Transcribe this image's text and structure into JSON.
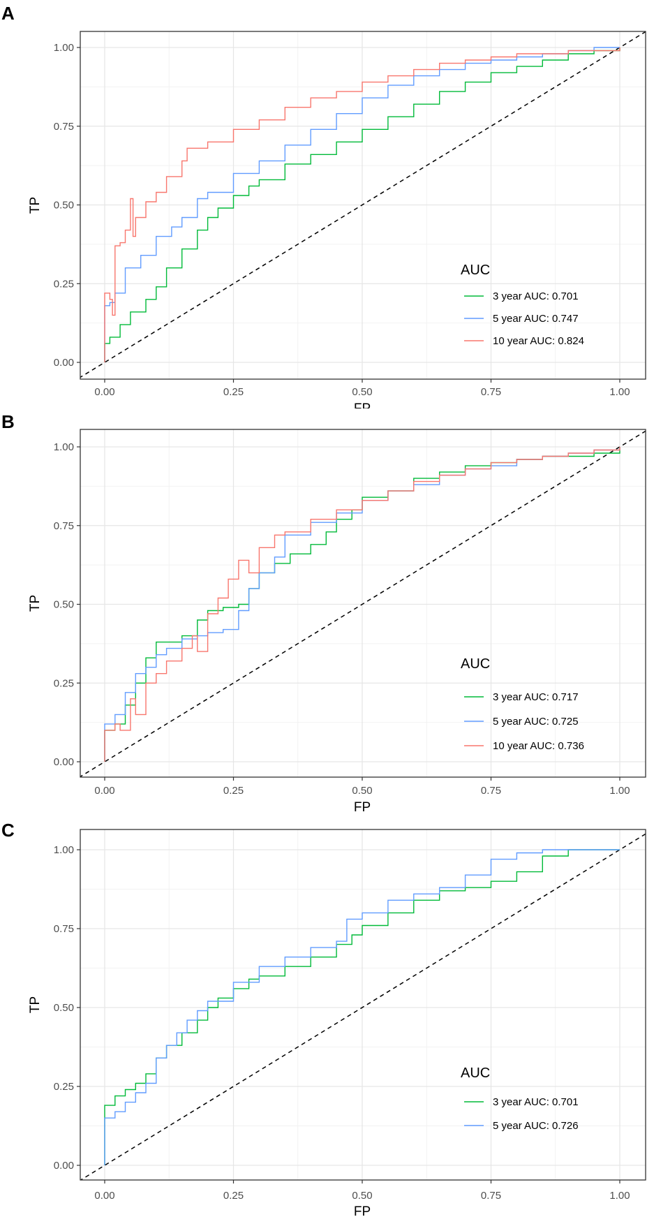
{
  "chart_data": [
    {
      "panel": "A",
      "type": "line",
      "xlabel": "FP",
      "ylabel": "TP",
      "xlim": [
        0,
        1
      ],
      "ylim": [
        0,
        1
      ],
      "x_ticks": [
        "0.00",
        "0.25",
        "0.50",
        "0.75",
        "1.00"
      ],
      "y_ticks": [
        "0.00",
        "0.25",
        "0.50",
        "0.75",
        "1.00"
      ],
      "grid": true,
      "diagonal": true,
      "legend": {
        "title": "AUC",
        "position": "bottom-right"
      },
      "series": [
        {
          "name": "3 year AUC: 0.701",
          "color": "#00ba38",
          "x": [
            0,
            0,
            0.01,
            0.03,
            0.05,
            0.08,
            0.1,
            0.12,
            0.15,
            0.18,
            0.2,
            0.22,
            0.25,
            0.28,
            0.3,
            0.35,
            0.4,
            0.45,
            0.5,
            0.55,
            0.6,
            0.65,
            0.7,
            0.75,
            0.8,
            0.85,
            0.9,
            0.95,
            1
          ],
          "y": [
            0,
            0.06,
            0.08,
            0.12,
            0.16,
            0.2,
            0.24,
            0.3,
            0.36,
            0.42,
            0.46,
            0.49,
            0.53,
            0.56,
            0.58,
            0.63,
            0.66,
            0.7,
            0.74,
            0.78,
            0.82,
            0.86,
            0.89,
            0.92,
            0.94,
            0.96,
            0.98,
            0.99,
            1
          ]
        },
        {
          "name": "5 year AUC: 0.747",
          "color": "#619cff",
          "x": [
            0,
            0,
            0.01,
            0.02,
            0.04,
            0.07,
            0.1,
            0.13,
            0.15,
            0.18,
            0.2,
            0.25,
            0.3,
            0.35,
            0.4,
            0.45,
            0.5,
            0.55,
            0.6,
            0.65,
            0.7,
            0.75,
            0.8,
            0.85,
            0.9,
            0.95,
            1
          ],
          "y": [
            0,
            0.18,
            0.19,
            0.22,
            0.3,
            0.34,
            0.4,
            0.43,
            0.46,
            0.52,
            0.54,
            0.6,
            0.64,
            0.69,
            0.74,
            0.79,
            0.84,
            0.88,
            0.91,
            0.93,
            0.95,
            0.96,
            0.97,
            0.98,
            0.99,
            1,
            1
          ]
        },
        {
          "name": "10 year AUC: 0.824",
          "color": "#f8766d",
          "x": [
            0,
            0,
            0.01,
            0.015,
            0.02,
            0.025,
            0.03,
            0.04,
            0.05,
            0.055,
            0.06,
            0.08,
            0.1,
            0.12,
            0.15,
            0.16,
            0.2,
            0.25,
            0.3,
            0.35,
            0.4,
            0.45,
            0.5,
            0.55,
            0.6,
            0.65,
            0.7,
            0.75,
            0.8,
            0.9,
            1
          ],
          "y": [
            0,
            0.22,
            0.2,
            0.15,
            0.37,
            0.37,
            0.38,
            0.42,
            0.52,
            0.4,
            0.46,
            0.51,
            0.54,
            0.59,
            0.64,
            0.68,
            0.7,
            0.74,
            0.77,
            0.81,
            0.84,
            0.86,
            0.89,
            0.91,
            0.93,
            0.95,
            0.96,
            0.97,
            0.98,
            0.99,
            1
          ]
        }
      ]
    },
    {
      "panel": "B",
      "type": "line",
      "xlabel": "FP",
      "ylabel": "TP",
      "xlim": [
        0,
        1
      ],
      "ylim": [
        0,
        1
      ],
      "x_ticks": [
        "0.00",
        "0.25",
        "0.50",
        "0.75",
        "1.00"
      ],
      "y_ticks": [
        "0.00",
        "0.25",
        "0.50",
        "0.75",
        "1.00"
      ],
      "grid": true,
      "diagonal": true,
      "legend": {
        "title": "AUC",
        "position": "bottom-right"
      },
      "series": [
        {
          "name": "3 year AUC: 0.717",
          "color": "#00ba38",
          "x": [
            0,
            0,
            0.02,
            0.04,
            0.06,
            0.08,
            0.1,
            0.12,
            0.15,
            0.18,
            0.2,
            0.23,
            0.26,
            0.28,
            0.3,
            0.33,
            0.36,
            0.4,
            0.43,
            0.45,
            0.48,
            0.5,
            0.55,
            0.6,
            0.65,
            0.7,
            0.75,
            0.8,
            0.85,
            0.9,
            0.95,
            1
          ],
          "y": [
            0,
            0.1,
            0.12,
            0.18,
            0.25,
            0.33,
            0.38,
            0.38,
            0.4,
            0.45,
            0.48,
            0.49,
            0.5,
            0.55,
            0.6,
            0.63,
            0.66,
            0.69,
            0.73,
            0.77,
            0.8,
            0.84,
            0.86,
            0.9,
            0.92,
            0.94,
            0.95,
            0.96,
            0.97,
            0.97,
            0.98,
            1
          ]
        },
        {
          "name": "5 year AUC: 0.725",
          "color": "#619cff",
          "x": [
            0,
            0,
            0.02,
            0.04,
            0.06,
            0.08,
            0.1,
            0.12,
            0.15,
            0.18,
            0.2,
            0.23,
            0.26,
            0.28,
            0.3,
            0.33,
            0.35,
            0.4,
            0.45,
            0.5,
            0.55,
            0.6,
            0.65,
            0.7,
            0.75,
            0.8,
            0.85,
            0.9,
            0.95,
            1
          ],
          "y": [
            0,
            0.12,
            0.15,
            0.22,
            0.28,
            0.3,
            0.34,
            0.36,
            0.39,
            0.4,
            0.41,
            0.42,
            0.48,
            0.55,
            0.6,
            0.65,
            0.72,
            0.76,
            0.79,
            0.83,
            0.86,
            0.88,
            0.91,
            0.93,
            0.94,
            0.96,
            0.97,
            0.98,
            0.99,
            1
          ]
        },
        {
          "name": "10 year AUC: 0.736",
          "color": "#f8766d",
          "x": [
            0,
            0,
            0.02,
            0.03,
            0.05,
            0.06,
            0.08,
            0.1,
            0.12,
            0.15,
            0.17,
            0.18,
            0.2,
            0.22,
            0.24,
            0.26,
            0.28,
            0.3,
            0.33,
            0.35,
            0.4,
            0.45,
            0.5,
            0.55,
            0.6,
            0.65,
            0.7,
            0.75,
            0.8,
            0.85,
            0.9,
            0.95,
            1
          ],
          "y": [
            0,
            0.1,
            0.12,
            0.1,
            0.2,
            0.15,
            0.25,
            0.28,
            0.32,
            0.36,
            0.4,
            0.35,
            0.47,
            0.52,
            0.58,
            0.64,
            0.6,
            0.68,
            0.72,
            0.73,
            0.77,
            0.8,
            0.83,
            0.86,
            0.89,
            0.91,
            0.93,
            0.95,
            0.96,
            0.97,
            0.98,
            0.99,
            1
          ]
        }
      ]
    },
    {
      "panel": "C",
      "type": "line",
      "xlabel": "FP",
      "ylabel": "TP",
      "xlim": [
        0,
        1
      ],
      "ylim": [
        0,
        1
      ],
      "x_ticks": [
        "0.00",
        "0.25",
        "0.50",
        "0.75",
        "1.00"
      ],
      "y_ticks": [
        "0.00",
        "0.25",
        "0.50",
        "0.75",
        "1.00"
      ],
      "grid": true,
      "diagonal": true,
      "legend": {
        "title": "AUC",
        "position": "bottom-right"
      },
      "series": [
        {
          "name": "3 year AUC: 0.701",
          "color": "#00ba38",
          "x": [
            0,
            0,
            0.02,
            0.04,
            0.06,
            0.08,
            0.1,
            0.12,
            0.15,
            0.18,
            0.2,
            0.22,
            0.25,
            0.28,
            0.3,
            0.35,
            0.4,
            0.45,
            0.48,
            0.5,
            0.55,
            0.6,
            0.65,
            0.7,
            0.75,
            0.8,
            0.85,
            0.9,
            0.95,
            1
          ],
          "y": [
            0,
            0.19,
            0.22,
            0.24,
            0.26,
            0.29,
            0.34,
            0.38,
            0.42,
            0.46,
            0.5,
            0.53,
            0.56,
            0.59,
            0.6,
            0.63,
            0.66,
            0.7,
            0.73,
            0.76,
            0.8,
            0.84,
            0.87,
            0.88,
            0.9,
            0.93,
            0.98,
            1,
            1,
            1
          ]
        },
        {
          "name": "5 year AUC: 0.726",
          "color": "#619cff",
          "x": [
            0,
            0,
            0.02,
            0.04,
            0.06,
            0.08,
            0.1,
            0.12,
            0.14,
            0.16,
            0.18,
            0.2,
            0.25,
            0.3,
            0.35,
            0.4,
            0.45,
            0.47,
            0.5,
            0.55,
            0.6,
            0.65,
            0.7,
            0.75,
            0.8,
            0.85,
            0.9,
            1
          ],
          "y": [
            0,
            0.15,
            0.17,
            0.2,
            0.23,
            0.26,
            0.34,
            0.38,
            0.42,
            0.46,
            0.49,
            0.52,
            0.58,
            0.63,
            0.66,
            0.69,
            0.71,
            0.78,
            0.8,
            0.84,
            0.86,
            0.88,
            0.92,
            0.97,
            0.99,
            1,
            1,
            1
          ]
        }
      ]
    }
  ],
  "panel_letters": [
    "A",
    "B",
    "C"
  ]
}
